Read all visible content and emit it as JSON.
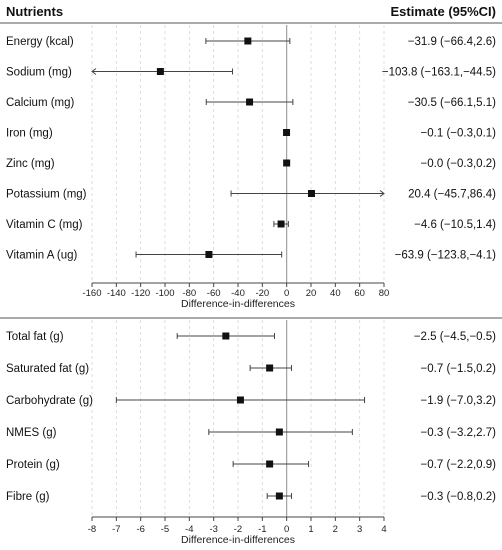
{
  "header": {
    "left_label": "Nutrients",
    "right_label": "Estimate (95%CI)"
  },
  "chart_data": [
    {
      "type": "forest",
      "xlabel": "Difference-in-differences",
      "xlim": [
        -160,
        80
      ],
      "xticks": [
        "-160",
        "-140",
        "-120",
        "-100",
        "-80",
        "-60",
        "-40",
        "-20",
        "0",
        "20",
        "40",
        "60",
        "80"
      ],
      "grid": "vertical dashed",
      "rows": [
        {
          "label": "Energy (kcal)",
          "estimate": -31.9,
          "lower": -66.4,
          "upper": 2.6,
          "estimate_text": "−31.9 (−66.4,2.6)"
        },
        {
          "label": "Sodium (mg)",
          "estimate": -103.8,
          "lower": -163.1,
          "upper": -44.5,
          "estimate_text": "−103.8 (−163.1,−44.5)"
        },
        {
          "label": "Calcium (mg)",
          "estimate": -30.5,
          "lower": -66.1,
          "upper": 5.1,
          "estimate_text": "−30.5 (−66.1,5.1)"
        },
        {
          "label": "Iron (mg)",
          "estimate": -0.1,
          "lower": -0.3,
          "upper": 0.1,
          "estimate_text": "−0.1 (−0.3,0.1)"
        },
        {
          "label": "Zinc (mg)",
          "estimate": -0.0,
          "lower": -0.3,
          "upper": 0.2,
          "estimate_text": "−0.0 (−0.3,0.2)"
        },
        {
          "label": "Potassium (mg)",
          "estimate": 20.4,
          "lower": -45.7,
          "upper": 86.4,
          "estimate_text": "20.4 (−45.7,86.4)"
        },
        {
          "label": "Vitamin C (mg)",
          "estimate": -4.6,
          "lower": -10.5,
          "upper": 1.4,
          "estimate_text": "−4.6 (−10.5,1.4)"
        },
        {
          "label": "Vitamin A (ug)",
          "estimate": -63.9,
          "lower": -123.8,
          "upper": -4.1,
          "estimate_text": "−63.9 (−123.8,−4.1)"
        }
      ]
    },
    {
      "type": "forest",
      "xlabel": "Difference-in-differences",
      "xlim": [
        -8,
        4
      ],
      "xticks": [
        "-8",
        "-7",
        "-6",
        "-5",
        "-4",
        "-3",
        "-2",
        "-1",
        "0",
        "1",
        "2",
        "3",
        "4"
      ],
      "grid": "vertical dashed",
      "rows": [
        {
          "label": "Total fat (g)",
          "estimate": -2.5,
          "lower": -4.5,
          "upper": -0.5,
          "estimate_text": "−2.5 (−4.5,−0.5)"
        },
        {
          "label": "Saturated fat (g)",
          "estimate": -0.7,
          "lower": -1.5,
          "upper": 0.2,
          "estimate_text": "−0.7 (−1.5,0.2)"
        },
        {
          "label": "Carbohydrate (g)",
          "estimate": -1.9,
          "lower": -7.0,
          "upper": 3.2,
          "estimate_text": "−1.9 (−7.0,3.2)"
        },
        {
          "label": "NMES (g)",
          "estimate": -0.3,
          "lower": -3.2,
          "upper": 2.7,
          "estimate_text": "−0.3 (−3.2,2.7)"
        },
        {
          "label": "Protein (g)",
          "estimate": -0.7,
          "lower": -2.2,
          "upper": 0.9,
          "estimate_text": "−0.7 (−2.2,0.9)"
        },
        {
          "label": "Fibre (g)",
          "estimate": -0.3,
          "lower": -0.8,
          "upper": 0.2,
          "estimate_text": "−0.3 (−0.8,0.2)"
        }
      ]
    }
  ]
}
